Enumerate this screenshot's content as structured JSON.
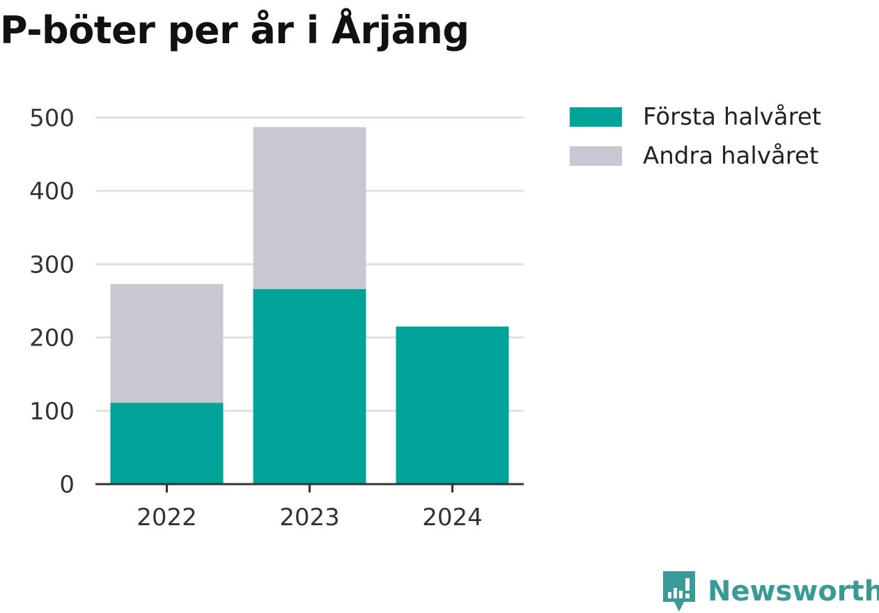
{
  "chart_data": {
    "type": "bar",
    "stacked": true,
    "title": "P-böter per år i Årjäng",
    "categories": [
      "2022",
      "2023",
      "2024"
    ],
    "series": [
      {
        "name": "Första halvåret",
        "values": [
          111,
          266,
          215
        ],
        "color": "#00a398"
      },
      {
        "name": "Andra halvåret",
        "values": [
          162,
          221,
          null
        ],
        "color": "#c8c7d2"
      }
    ],
    "yticks": [
      0,
      100,
      200,
      300,
      400,
      500
    ],
    "ylim": [
      0,
      525
    ],
    "grid": true,
    "legend_position": "right"
  },
  "brand": {
    "name": "Newsworthy",
    "icon": "newsworthy-logo-icon",
    "color": "#3a9a95"
  }
}
